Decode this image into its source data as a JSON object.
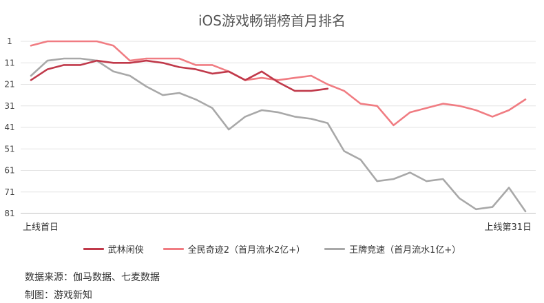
{
  "chart_data": {
    "type": "line",
    "title": "iOS游戏畅销榜首月排名",
    "y_reversed": true,
    "ylim": [
      1,
      81
    ],
    "yticks": [
      1,
      11,
      21,
      31,
      41,
      51,
      61,
      71,
      81
    ],
    "x": [
      1,
      2,
      3,
      4,
      5,
      6,
      7,
      8,
      9,
      10,
      11,
      12,
      13,
      14,
      15,
      16,
      17,
      18,
      19,
      20,
      21,
      22,
      23,
      24,
      25,
      26,
      27,
      28,
      29,
      30,
      31
    ],
    "x_tick_labels": {
      "start": "上线首日",
      "end": "上线第31日"
    },
    "grid": true,
    "legend_position": "bottom",
    "series": [
      {
        "name": "武林闲侠",
        "color": "#c0394a",
        "values": [
          19,
          14,
          12,
          12,
          10,
          11,
          11,
          10,
          11,
          13,
          14,
          16,
          15,
          19,
          15,
          20,
          24,
          24,
          23,
          null,
          null,
          null,
          null,
          null,
          null,
          null,
          null,
          null,
          null,
          null,
          null
        ]
      },
      {
        "name": "全民奇迹2（首月流水2亿+）",
        "color": "#f07c82",
        "values": [
          3,
          1,
          1,
          1,
          1,
          3,
          10,
          9,
          9,
          9,
          12,
          12,
          15,
          19,
          18,
          19,
          18,
          17,
          21,
          24,
          30,
          31,
          40,
          34,
          32,
          30,
          31,
          33,
          36,
          33,
          28
        ]
      },
      {
        "name": "王牌竞速（首月流水1亿+）",
        "color": "#a8a8a8",
        "values": [
          17,
          10,
          9,
          9,
          10,
          15,
          17,
          22,
          26,
          25,
          28,
          32,
          42,
          36,
          33,
          34,
          36,
          37,
          39,
          52,
          56,
          66,
          65,
          62,
          66,
          65,
          74,
          79,
          78,
          69,
          80
        ]
      }
    ]
  },
  "footer": {
    "source": "数据来源：伽马数据、七麦数据",
    "author": "制图：游戏新知"
  }
}
